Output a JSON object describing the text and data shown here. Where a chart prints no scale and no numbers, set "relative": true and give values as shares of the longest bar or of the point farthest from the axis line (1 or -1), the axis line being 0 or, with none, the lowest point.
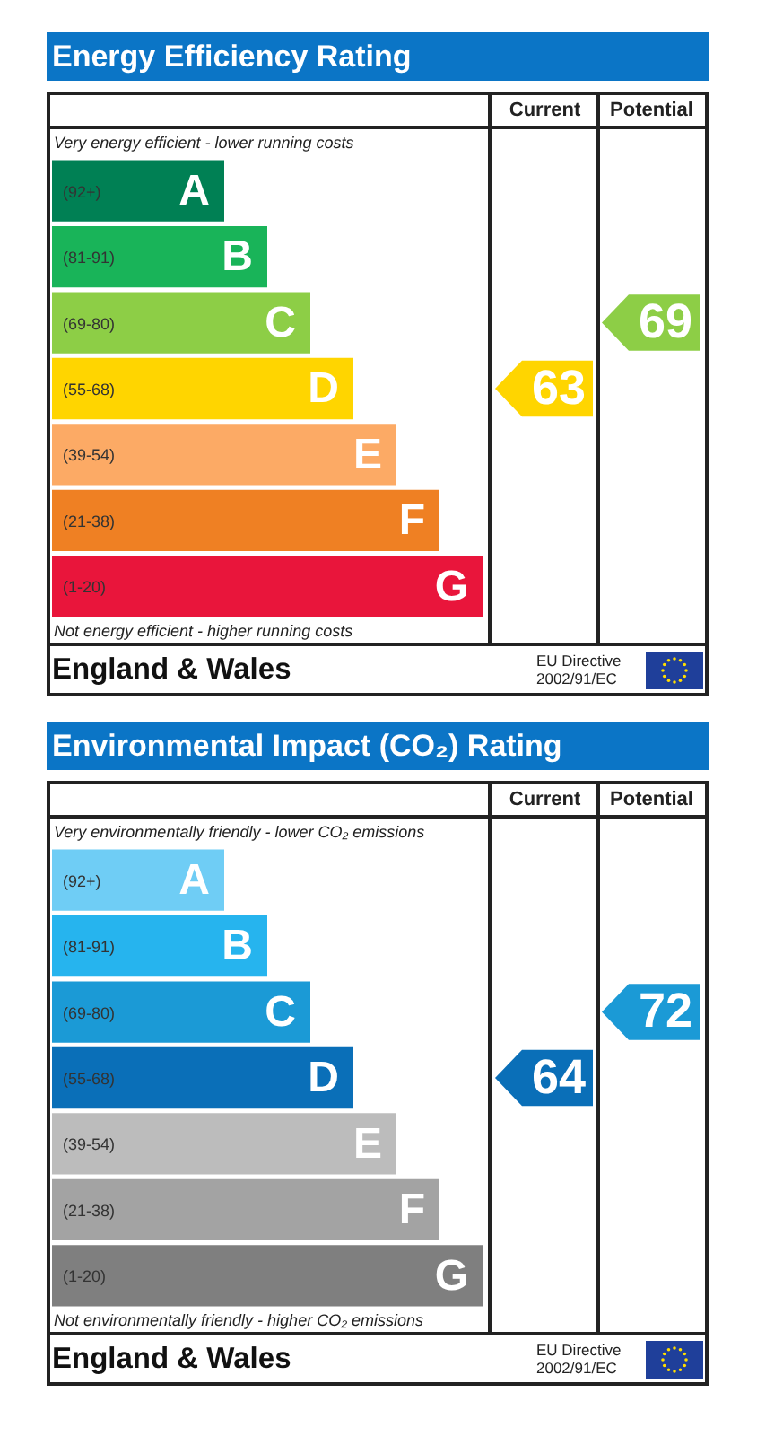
{
  "chart_data": [
    {
      "type": "bar",
      "orientation": "horizontal",
      "relative": true,
      "title": "Energy Efficiency Rating",
      "categories": [
        null,
        null,
        null,
        null,
        null,
        null,
        null
      ],
      "values": [
        0.4,
        0.5,
        0.6,
        0.7,
        0.8,
        0.9,
        1
      ],
      "colors": [
        "#008054",
        "#19b459",
        "#8dce46",
        "#ffd500",
        "#fcaa65",
        "#ef8023",
        "#e9153b"
      ],
      "annotations": [
        "Very energy efficient - lower running costs",
        "A",
        "B",
        "C",
        "D",
        "E",
        "F",
        "G",
        "Not energy efficient - higher running costs",
        "England & Wales"
      ]
    },
    {
      "type": "heatmap",
      "categories": [
        "Current",
        "Potential"
      ],
      "y_categories": [
        "(92+)",
        "(81-91)",
        "(69-80)",
        "(55-68)",
        "(39-54)",
        "(21-38)",
        "(1-20)"
      ],
      "cells": [
        [
          null,
          null
        ],
        [
          null,
          null
        ],
        [
          null,
          69
        ],
        [
          63,
          null
        ],
        [
          null,
          null
        ],
        [
          null,
          null
        ],
        [
          null,
          null
        ]
      ],
      "data_labels": true,
      "tick_labels": "x",
      "annotations": [
        "EU Directive 2002/91/EC"
      ]
    },
    {
      "type": "bar",
      "orientation": "horizontal",
      "relative": true,
      "title": "Environmental Impact (CO₂) Rating",
      "categories": [
        null,
        null,
        null,
        null,
        null,
        null,
        null
      ],
      "values": [
        0.4,
        0.5,
        0.6,
        0.7,
        0.8,
        0.9,
        1
      ],
      "colors": [
        "#6fcdf5",
        "#26b4ee",
        "#1b9ad6",
        "#0a6fb8",
        "#bcbcbc",
        "#a3a3a3",
        "#7f7f7f"
      ],
      "annotations": [
        "Very environmentally friendly - lower CO₂ emissions",
        "A",
        "B",
        "C",
        "D",
        "E",
        "F",
        "G",
        "Not environmentally friendly - higher CO₂ emissions",
        "England & Wales"
      ]
    },
    {
      "type": "heatmap",
      "categories": [
        "Current",
        "Potential"
      ],
      "y_categories": [
        "(92+)",
        "(81-91)",
        "(69-80)",
        "(55-68)",
        "(39-54)",
        "(21-38)",
        "(1-20)"
      ],
      "cells": [
        [
          null,
          null
        ],
        [
          null,
          null
        ],
        [
          null,
          72
        ],
        [
          64,
          null
        ],
        [
          null,
          null
        ],
        [
          null,
          null
        ],
        [
          null,
          null
        ]
      ],
      "data_labels": true,
      "tick_labels": "x",
      "annotations": [
        "EU Directive 2002/91/EC"
      ]
    }
  ]
}
